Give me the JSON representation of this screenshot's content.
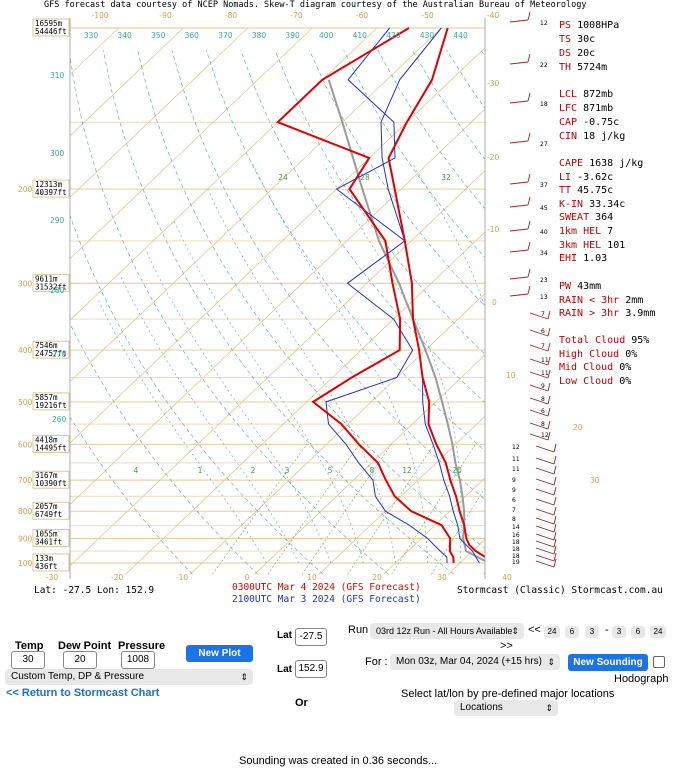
{
  "chart_data": {
    "type": "skew-t",
    "header_text": "GFS forecast data courtesy of NCEP Nomads.  Skew-T diagram courtesy of the Australian Bureau of Meteorology",
    "temperature_ticks": [
      "-100",
      "-90",
      "-80",
      "-70",
      "-60",
      "-50",
      "-40"
    ],
    "bottom_temperature_ticks": [
      "-30",
      "-20",
      "-10",
      "0",
      "10",
      "20",
      "30",
      "40"
    ],
    "pressure_ticks": [
      "200",
      "300",
      "400",
      "500",
      "600",
      "700",
      "800",
      "900",
      "1000"
    ],
    "height_labels": [
      {
        "pressure": 100,
        "m": "16595m",
        "ft": "54446ft"
      },
      {
        "pressure": 200,
        "m": "12313m",
        "ft": "40397ft"
      },
      {
        "pressure": 300,
        "m": "9611m",
        "ft": "31532ft"
      },
      {
        "pressure": 400,
        "m": "7546m",
        "ft": "24757ft"
      },
      {
        "pressure": 500,
        "m": "5857m",
        "ft": "19216ft"
      },
      {
        "pressure": 600,
        "m": "4418m",
        "ft": "14495ft"
      },
      {
        "pressure": 700,
        "m": "3167m",
        "ft": "10390ft"
      },
      {
        "pressure": 800,
        "m": "2057m",
        "ft": "6749ft"
      },
      {
        "pressure": 900,
        "m": "1055m",
        "ft": "3461ft"
      },
      {
        "pressure": 1000,
        "m": "133m",
        "ft": "436ft"
      }
    ],
    "theta_labels": [
      "330",
      "340",
      "350",
      "360",
      "370",
      "380",
      "390",
      "400",
      "410",
      "420",
      "430",
      "440"
    ],
    "theta_side_labels": [
      "310",
      "300",
      "290",
      "280",
      "270",
      "260"
    ],
    "mixing_ratio_labels": [
      "4",
      "1",
      "2",
      "3",
      "5",
      "8",
      "12",
      "20"
    ],
    "upper_mixing_labels": [
      "24",
      "28",
      "32"
    ],
    "right_axis_ticks": [
      "-30",
      "-20",
      "-10",
      "0",
      "10",
      "20",
      "30",
      "40"
    ],
    "location_text": "Lat: -27.5   Lon: 152.9",
    "credit_text": "Stormcast (Classic) Stormcast.com.au",
    "series": [
      {
        "name": "0300UTC Mar 4 2024 (GFS Forecast)",
        "color": "#e00000",
        "temperature": [
          [
            1000,
            24.5
          ],
          [
            975,
            23
          ],
          [
            950,
            20.5
          ],
          [
            925,
            18.5
          ],
          [
            900,
            17
          ],
          [
            850,
            14.5
          ],
          [
            800,
            11.5
          ],
          [
            750,
            8.5
          ],
          [
            700,
            5
          ],
          [
            650,
            1.5
          ],
          [
            600,
            -3
          ],
          [
            550,
            -7.5
          ],
          [
            500,
            -11
          ],
          [
            450,
            -16
          ],
          [
            400,
            -21
          ],
          [
            350,
            -27
          ],
          [
            300,
            -33
          ],
          [
            250,
            -41
          ],
          [
            200,
            -51
          ],
          [
            175,
            -57
          ],
          [
            150,
            -60
          ],
          [
            125,
            -63
          ],
          [
            100,
            -69
          ]
        ],
        "dewpoint": [
          [
            1000,
            19
          ],
          [
            975,
            18
          ],
          [
            950,
            16.5
          ],
          [
            925,
            15.5
          ],
          [
            900,
            14.5
          ],
          [
            850,
            11
          ],
          [
            800,
            4
          ],
          [
            750,
            -1
          ],
          [
            700,
            -5
          ],
          [
            650,
            -9
          ],
          [
            600,
            -15
          ],
          [
            550,
            -21
          ],
          [
            500,
            -29
          ],
          [
            450,
            -27
          ],
          [
            400,
            -24
          ],
          [
            350,
            -29
          ],
          [
            300,
            -36
          ],
          [
            250,
            -44
          ],
          [
            200,
            -58
          ],
          [
            175,
            -60
          ],
          [
            150,
            -80
          ],
          [
            125,
            -80
          ],
          [
            100,
            -75
          ]
        ]
      },
      {
        "name": "2100UTC Mar 3 2024 (GFS Forecast)",
        "color": "#2030d0",
        "temperature": [
          [
            1000,
            23
          ],
          [
            975,
            21.5
          ],
          [
            950,
            20
          ],
          [
            925,
            18
          ],
          [
            900,
            16
          ],
          [
            850,
            13.5
          ],
          [
            800,
            10.5
          ],
          [
            750,
            7.5
          ],
          [
            700,
            4
          ],
          [
            650,
            0.5
          ],
          [
            600,
            -3.5
          ],
          [
            550,
            -8
          ],
          [
            500,
            -12
          ],
          [
            450,
            -16
          ],
          [
            400,
            -21
          ],
          [
            350,
            -27
          ],
          [
            300,
            -33
          ],
          [
            250,
            -41
          ],
          [
            200,
            -52
          ],
          [
            175,
            -58
          ],
          [
            150,
            -64
          ],
          [
            125,
            -68
          ],
          [
            100,
            -70
          ]
        ],
        "dewpoint": [
          [
            1000,
            18
          ],
          [
            975,
            17
          ],
          [
            950,
            15
          ],
          [
            925,
            13
          ],
          [
            900,
            11
          ],
          [
            850,
            6
          ],
          [
            800,
            0
          ],
          [
            750,
            -4
          ],
          [
            700,
            -7
          ],
          [
            650,
            -12
          ],
          [
            600,
            -17
          ],
          [
            550,
            -23
          ],
          [
            500,
            -27
          ],
          [
            450,
            -20
          ],
          [
            400,
            -22
          ],
          [
            350,
            -30
          ],
          [
            300,
            -43
          ],
          [
            250,
            -41
          ],
          [
            200,
            -60
          ],
          [
            175,
            -56
          ],
          [
            150,
            -62
          ],
          [
            125,
            -76
          ],
          [
            100,
            -78
          ]
        ]
      }
    ],
    "parcel_path": [
      [
        1000,
        24.5
      ],
      [
        950,
        19
      ],
      [
        900,
        16.5
      ],
      [
        850,
        14.5
      ],
      [
        800,
        12.2
      ],
      [
        750,
        9.5
      ],
      [
        700,
        6.5
      ],
      [
        650,
        3
      ],
      [
        600,
        -0.5
      ],
      [
        550,
        -4.5
      ],
      [
        500,
        -9
      ],
      [
        450,
        -14
      ],
      [
        400,
        -20
      ],
      [
        350,
        -27
      ],
      [
        300,
        -35
      ],
      [
        250,
        -45
      ],
      [
        200,
        -56
      ],
      [
        150,
        -70
      ],
      [
        125,
        -79
      ]
    ],
    "wind_speeds": [
      "12",
      "22",
      "18",
      "27",
      "37",
      "45",
      "40",
      "34",
      "23",
      "13",
      "7",
      "6",
      "7",
      "11",
      "11",
      "9",
      "8",
      "6",
      "8",
      "12",
      "12",
      "11",
      "11",
      "9",
      "9",
      "6",
      "7",
      "8",
      "14",
      "16",
      "18",
      "18",
      "18",
      "19"
    ],
    "stats": [
      {
        "k": "PS",
        "v": "1008HPa"
      },
      {
        "k": "TS",
        "v": "30c"
      },
      {
        "k": "DS",
        "v": "20c"
      },
      {
        "k": "TH",
        "v": "5724m"
      },
      {
        "k": "LCL",
        "v": "872mb"
      },
      {
        "k": "LFC",
        "v": "871mb"
      },
      {
        "k": "CAP",
        "v": "-0.75c"
      },
      {
        "k": "CIN",
        "v": "18 j/kg"
      },
      {
        "k": "CAPE",
        "v": "1638 j/kg"
      },
      {
        "k": "LI",
        "v": "-3.62c"
      },
      {
        "k": "TT",
        "v": "45.75c"
      },
      {
        "k": "K-IN",
        "v": "33.34c"
      },
      {
        "k": "SWEAT",
        "v": "364"
      },
      {
        "k": "1km HEL",
        "v": "7"
      },
      {
        "k": "3km HEL",
        "v": "101"
      },
      {
        "k": "EHI",
        "v": "1.03"
      },
      {
        "k": "PW",
        "v": "43mm"
      },
      {
        "k": "RAIN < 3hr",
        "v": "2mm"
      },
      {
        "k": "RAIN > 3hr",
        "v": "3.9mm"
      },
      {
        "k": "Total Cloud",
        "v": "95%"
      },
      {
        "k": "High Cloud",
        "v": "0%"
      },
      {
        "k": "Mid Cloud",
        "v": "0%"
      },
      {
        "k": "Low Cloud",
        "v": "0%"
      }
    ]
  },
  "controls": {
    "temp_label": "Temp",
    "temp_value": "30",
    "dew_label": "Dew Point",
    "dew_value": "20",
    "pressure_label": "Pressure",
    "pressure_value": "1008",
    "new_plot": "New Plot",
    "custom_select": "Custom Temp, DP & Pressure",
    "return_link": "<< Return to Stormcast Chart",
    "lat_label": "Lat",
    "lat_value": "-27.5",
    "lon_label": "Lat",
    "lon_value": "152.9",
    "or_label": "Or",
    "run_label": "Run",
    "run_select": "03rd 12z Run - All Hours Available",
    "prev_arrows": "<<",
    "step_buttons": [
      "24",
      "6",
      "3",
      "-",
      "3",
      "6",
      "24"
    ],
    "next_arrows": ">>",
    "for_label": "For :",
    "for_select": "Mon 03z, Mar 04, 2024 (+15 hrs)",
    "new_sounding": "New Sounding",
    "hodograph_label": "Hodograph",
    "select_text": "Select lat/lon by pre-defined major locations",
    "locations_select": "Locations",
    "footer_text": "Sounding was created in 0.36 seconds..."
  }
}
